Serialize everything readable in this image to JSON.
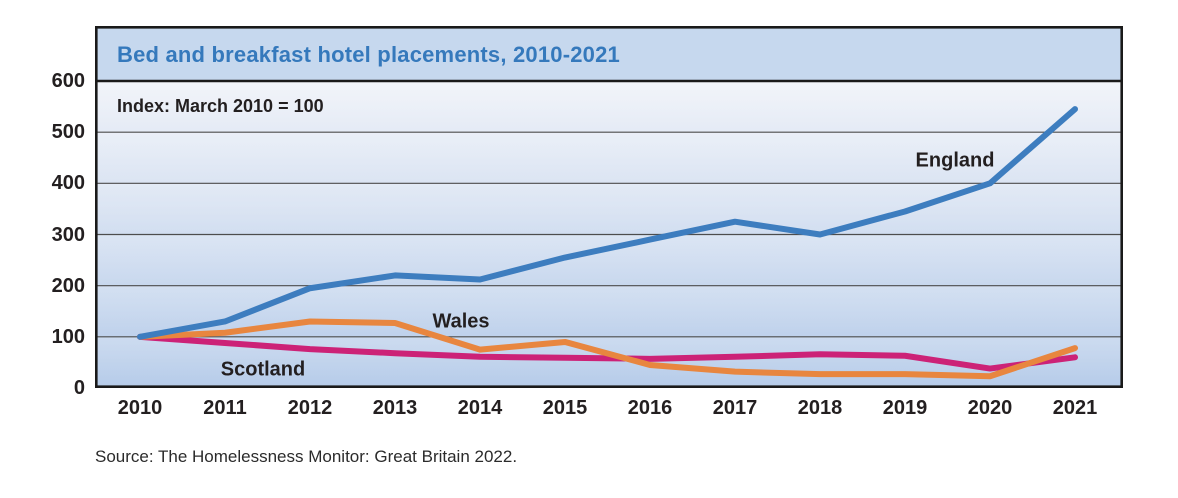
{
  "header": {
    "title": "Bed and breakfast hotel placements, 2010-2021",
    "index_note": "Index: March 2010 = 100"
  },
  "footer": {
    "source": "Source: The Homelessness Monitor: Great Britain 2022."
  },
  "colors": {
    "title_text": "#3579bc",
    "title_band_bg": "#c6d8ee",
    "plot_bg_top": "#eef1f8",
    "plot_bg_bottom": "#b5cbe9",
    "gridline": "#4d4d4d",
    "frame": "#1a1a1a",
    "england": "#3d7dbf",
    "wales": "#e8863f",
    "scotland": "#cc2277"
  },
  "chart_data": {
    "type": "line",
    "title": "Bed and breakfast hotel placements, 2010-2021",
    "subtitle": "Index: March 2010 = 100",
    "x": [
      2010,
      2011,
      2012,
      2013,
      2014,
      2015,
      2016,
      2017,
      2018,
      2019,
      2020,
      2021
    ],
    "series": [
      {
        "name": "England",
        "color": "#3d7dbf",
        "values": [
          100,
          130,
          195,
          220,
          212,
          255,
          290,
          325,
          300,
          345,
          400,
          545
        ]
      },
      {
        "name": "Wales",
        "color": "#e8863f",
        "values": [
          100,
          108,
          130,
          127,
          75,
          90,
          45,
          32,
          27,
          27,
          23,
          78
        ]
      },
      {
        "name": "Scotland",
        "color": "#cc2277",
        "values": [
          100,
          88,
          76,
          68,
          61,
          59,
          57,
          61,
          66,
          63,
          38,
          60
        ]
      }
    ],
    "ylim": [
      0,
      600
    ],
    "yticks": [
      0,
      100,
      200,
      300,
      400,
      500,
      600
    ],
    "grid": "horizontal",
    "legend_position": "inline-labels",
    "source": "Source: The Homelessness Monitor: Great Britain 2022."
  }
}
